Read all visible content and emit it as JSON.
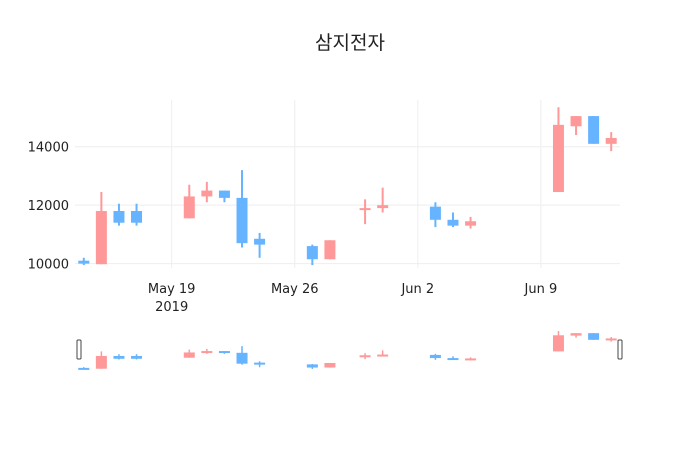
{
  "chart_data": {
    "type": "candlestick",
    "title": "삼지전자",
    "xlabel": "",
    "ylabel": "",
    "ylim": [
      9850,
      15600
    ],
    "y_ticks": [
      10000,
      12000,
      14000
    ],
    "x_ticks": [
      {
        "date": "2019-05-19",
        "label": "May 19",
        "sublabel": "2019"
      },
      {
        "date": "2019-05-26",
        "label": "May 26",
        "sublabel": ""
      },
      {
        "date": "2019-06-02",
        "label": "Jun 2",
        "sublabel": ""
      },
      {
        "date": "2019-06-09",
        "label": "Jun 9",
        "sublabel": ""
      }
    ],
    "x_range": [
      "2019-05-13T12:00",
      "2019-06-13T12:00"
    ],
    "grid": true,
    "increasing_color": "#FF9999",
    "decreasing_color": "#66B3FF",
    "rangeslider": true,
    "series": [
      {
        "date": "2019-05-14",
        "open": 10100,
        "high": 10200,
        "low": 9950,
        "close": 10000
      },
      {
        "date": "2019-05-15",
        "open": 9980,
        "high": 12450,
        "low": 9980,
        "close": 11800
      },
      {
        "date": "2019-05-16",
        "open": 11800,
        "high": 12050,
        "low": 11300,
        "close": 11400
      },
      {
        "date": "2019-05-17",
        "open": 11800,
        "high": 12050,
        "low": 11300,
        "close": 11400
      },
      {
        "date": "2019-05-20",
        "open": 11550,
        "high": 12700,
        "low": 11550,
        "close": 12300
      },
      {
        "date": "2019-05-21",
        "open": 12300,
        "high": 12800,
        "low": 12100,
        "close": 12500
      },
      {
        "date": "2019-05-22",
        "open": 12500,
        "high": 12500,
        "low": 12100,
        "close": 12250
      },
      {
        "date": "2019-05-23",
        "open": 12250,
        "high": 13200,
        "low": 10550,
        "close": 10700
      },
      {
        "date": "2019-05-24",
        "open": 10850,
        "high": 11050,
        "low": 10200,
        "close": 10650
      },
      {
        "date": "2019-05-27",
        "open": 10600,
        "high": 10650,
        "low": 9950,
        "close": 10150
      },
      {
        "date": "2019-05-28",
        "open": 10150,
        "high": 10800,
        "low": 10150,
        "close": 10800
      },
      {
        "date": "2019-05-30",
        "open": 11850,
        "high": 12200,
        "low": 11350,
        "close": 11900
      },
      {
        "date": "2019-05-31",
        "open": 11900,
        "high": 12600,
        "low": 11750,
        "close": 12000
      },
      {
        "date": "2019-06-03",
        "open": 11950,
        "high": 12100,
        "low": 11250,
        "close": 11500
      },
      {
        "date": "2019-06-04",
        "open": 11500,
        "high": 11750,
        "low": 11250,
        "close": 11300
      },
      {
        "date": "2019-06-05",
        "open": 11300,
        "high": 11600,
        "low": 11200,
        "close": 11450
      },
      {
        "date": "2019-06-10",
        "open": 12450,
        "high": 15350,
        "low": 12450,
        "close": 14750
      },
      {
        "date": "2019-06-11",
        "open": 14700,
        "high": 15050,
        "low": 14400,
        "close": 15050
      },
      {
        "date": "2019-06-12",
        "open": 15050,
        "high": 15050,
        "low": 14100,
        "close": 14100
      },
      {
        "date": "2019-06-13",
        "open": 14100,
        "high": 14500,
        "low": 13850,
        "close": 14300
      }
    ]
  }
}
